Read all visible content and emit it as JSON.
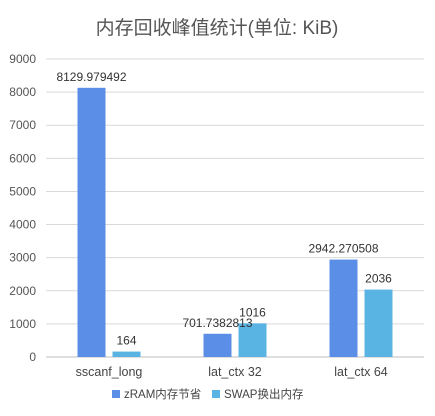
{
  "chart_data": {
    "type": "bar",
    "title": "内存回收峰值统计(单位: KiB)",
    "xlabel": "",
    "ylabel": "",
    "categories": [
      "sscanf_long",
      "lat_ctx 32",
      "lat_ctx 64"
    ],
    "series": [
      {
        "name": "zRAM内存节省",
        "color": "#5b8ee6",
        "values": [
          8129.979492,
          701.7382813,
          2942.270508
        ],
        "labels": [
          "8129.979492",
          "701.7382813",
          "2942.270508"
        ]
      },
      {
        "name": "SWAP换出内存",
        "color": "#5ab4e3",
        "values": [
          164,
          1016,
          2036
        ],
        "labels": [
          "164",
          "1016",
          "2036"
        ]
      }
    ],
    "ylim": [
      0,
      9000
    ],
    "yticks": [
      0,
      1000,
      2000,
      3000,
      4000,
      5000,
      6000,
      7000,
      8000,
      9000
    ],
    "grid": true,
    "legend_position": "bottom"
  }
}
